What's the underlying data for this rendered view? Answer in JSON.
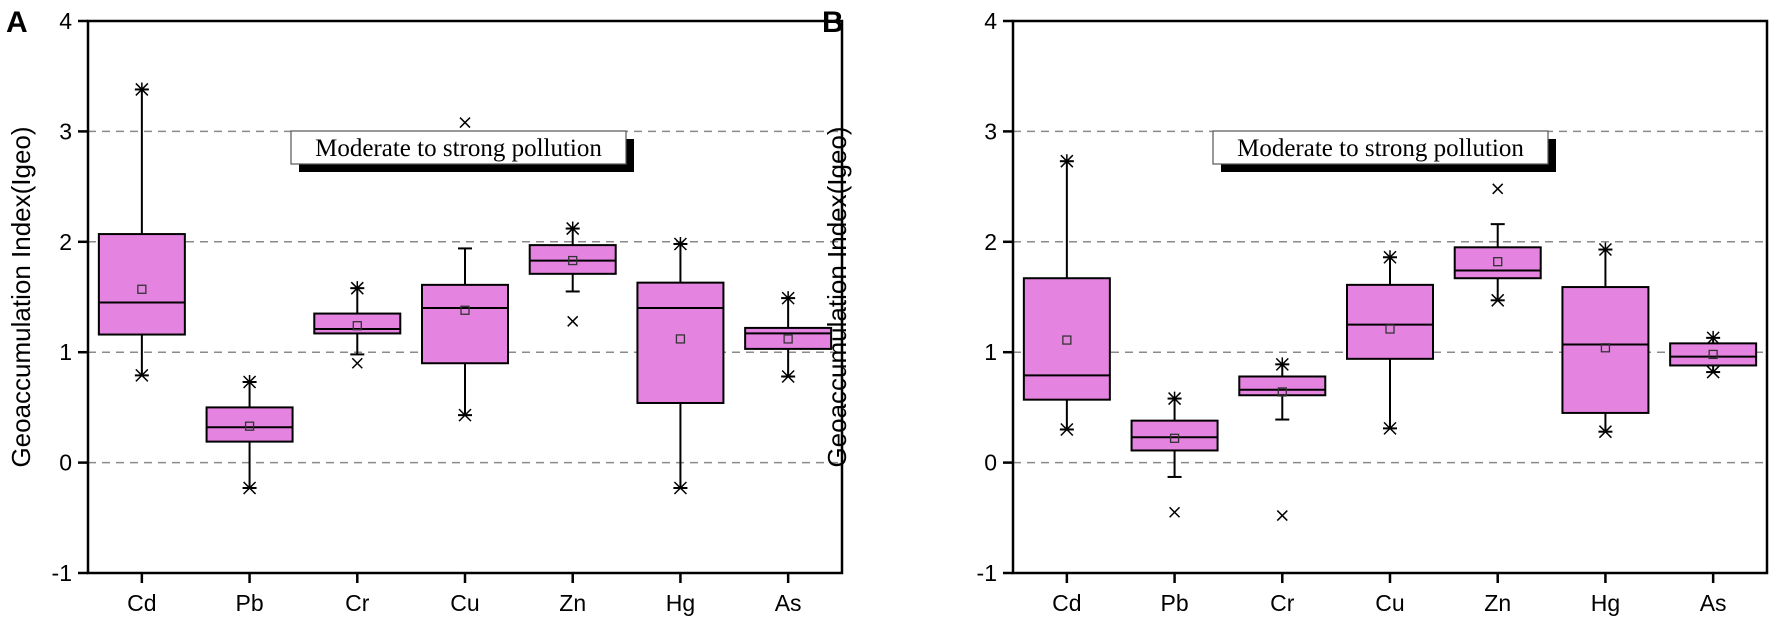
{
  "chart_data": [
    {
      "type": "box",
      "panel_label": "A",
      "ylabel": "Geoaccumulation Index(Igeo)",
      "xlabel": "",
      "ylim": [
        -1,
        4
      ],
      "yticks": [
        "-1",
        "0",
        "1",
        "2",
        "3",
        "4"
      ],
      "grid_lines_at": [
        0,
        1,
        2,
        3
      ],
      "annotation": "Moderate to strong pollution",
      "box_color": "#e484e0",
      "categories": [
        "Cd",
        "Pb",
        "Cr",
        "Cu",
        "Zn",
        "Hg",
        "As"
      ],
      "boxes": [
        {
          "name": "Cd",
          "whisker_low": 0.79,
          "q1": 1.16,
          "median": 1.45,
          "q3": 2.07,
          "whisker_high": 3.38,
          "mean": 1.57,
          "whisker_low_star": true,
          "whisker_high_star": true,
          "outliers": []
        },
        {
          "name": "Pb",
          "whisker_low": -0.23,
          "q1": 0.19,
          "median": 0.32,
          "q3": 0.5,
          "whisker_high": 0.73,
          "mean": 0.33,
          "whisker_low_star": true,
          "whisker_high_star": true,
          "outliers": []
        },
        {
          "name": "Cr",
          "whisker_low": 0.98,
          "q1": 1.17,
          "median": 1.21,
          "q3": 1.35,
          "whisker_high": 1.58,
          "mean": 1.24,
          "whisker_low_star": false,
          "whisker_high_star": true,
          "outliers": [
            0.9
          ]
        },
        {
          "name": "Cu",
          "whisker_low": 0.43,
          "q1": 0.9,
          "median": 1.4,
          "q3": 1.61,
          "whisker_high": 1.94,
          "mean": 1.38,
          "whisker_low_star": true,
          "whisker_high_star": false,
          "outliers": [
            3.08
          ]
        },
        {
          "name": "Zn",
          "whisker_low": 1.55,
          "q1": 1.71,
          "median": 1.83,
          "q3": 1.97,
          "whisker_high": 2.12,
          "mean": 1.83,
          "whisker_low_star": false,
          "whisker_high_star": true,
          "outliers": [
            1.28
          ]
        },
        {
          "name": "Hg",
          "whisker_low": -0.23,
          "q1": 0.54,
          "median": 1.4,
          "q3": 1.63,
          "whisker_high": 1.98,
          "mean": 1.12,
          "whisker_low_star": true,
          "whisker_high_star": true,
          "outliers": []
        },
        {
          "name": "As",
          "whisker_low": 0.78,
          "q1": 1.03,
          "median": 1.17,
          "q3": 1.22,
          "whisker_high": 1.49,
          "mean": 1.12,
          "whisker_low_star": true,
          "whisker_high_star": true,
          "outliers": []
        }
      ]
    },
    {
      "type": "box",
      "panel_label": "B",
      "ylabel": "Geoaccumulation Index(Igeo)",
      "xlabel": "",
      "ylim": [
        -1,
        4
      ],
      "yticks": [
        "-1",
        "0",
        "1",
        "2",
        "3",
        "4"
      ],
      "grid_lines_at": [
        0,
        1,
        2,
        3
      ],
      "annotation": "Moderate to strong pollution",
      "box_color": "#e484e0",
      "categories": [
        "Cd",
        "Pb",
        "Cr",
        "Cu",
        "Zn",
        "Hg",
        "As"
      ],
      "boxes": [
        {
          "name": "Cd",
          "whisker_low": 0.3,
          "q1": 0.57,
          "median": 0.79,
          "q3": 1.67,
          "whisker_high": 2.73,
          "mean": 1.11,
          "whisker_low_star": true,
          "whisker_high_star": true,
          "outliers": []
        },
        {
          "name": "Pb",
          "whisker_low": -0.13,
          "q1": 0.11,
          "median": 0.23,
          "q3": 0.38,
          "whisker_high": 0.58,
          "mean": 0.22,
          "whisker_low_star": false,
          "whisker_high_star": true,
          "outliers": [
            -0.45
          ]
        },
        {
          "name": "Cr",
          "whisker_low": 0.39,
          "q1": 0.61,
          "median": 0.66,
          "q3": 0.78,
          "whisker_high": 0.89,
          "mean": 0.64,
          "whisker_low_star": false,
          "whisker_high_star": true,
          "outliers": [
            -0.48
          ]
        },
        {
          "name": "Cu",
          "whisker_low": 0.31,
          "q1": 0.94,
          "median": 1.25,
          "q3": 1.61,
          "whisker_high": 1.86,
          "mean": 1.21,
          "whisker_low_star": true,
          "whisker_high_star": true,
          "outliers": []
        },
        {
          "name": "Zn",
          "whisker_low": 1.47,
          "q1": 1.67,
          "median": 1.74,
          "q3": 1.95,
          "whisker_high": 2.16,
          "mean": 1.82,
          "whisker_low_star": true,
          "whisker_high_star": false,
          "outliers": [
            2.48
          ]
        },
        {
          "name": "Hg",
          "whisker_low": 0.28,
          "q1": 0.45,
          "median": 1.07,
          "q3": 1.59,
          "whisker_high": 1.93,
          "mean": 1.04,
          "whisker_low_star": true,
          "whisker_high_star": true,
          "outliers": []
        },
        {
          "name": "As",
          "whisker_low": 0.82,
          "q1": 0.88,
          "median": 0.96,
          "q3": 1.08,
          "whisker_high": 1.13,
          "mean": 0.98,
          "whisker_low_star": true,
          "whisker_high_star": true,
          "outliers": []
        }
      ]
    }
  ]
}
